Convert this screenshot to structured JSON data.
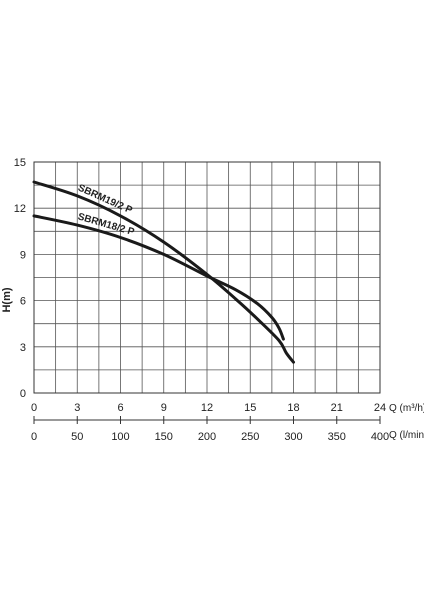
{
  "chart_data": {
    "type": "line",
    "ylabel": "H(m)",
    "xlabel": "Q (m³/h)",
    "x2label": "Q (l/min)",
    "xlim": [
      0,
      24
    ],
    "ylim": [
      0,
      15
    ],
    "x2lim": [
      0,
      400
    ],
    "x_ticks": [
      "0",
      "3",
      "6",
      "9",
      "12",
      "15",
      "18",
      "21",
      "24"
    ],
    "x2_ticks": [
      "0",
      "50",
      "100",
      "150",
      "200",
      "250",
      "300",
      "350",
      "400"
    ],
    "y_ticks": [
      "0",
      "3",
      "6",
      "9",
      "12",
      "15"
    ],
    "grid": true,
    "series": [
      {
        "name": "SBRM19/2 P",
        "x": [
          0,
          3,
          6,
          9,
          12,
          14,
          15.5,
          17,
          17.5,
          18
        ],
        "y": [
          13.7,
          12.8,
          11.5,
          9.8,
          7.7,
          6.1,
          4.8,
          3.4,
          2.6,
          2.0
        ]
      },
      {
        "name": "SBRM18/2 P",
        "x": [
          0,
          3,
          6,
          9,
          12,
          14,
          15.5,
          16.5,
          17,
          17.3
        ],
        "y": [
          11.5,
          10.9,
          10.1,
          9.0,
          7.6,
          6.7,
          5.8,
          4.9,
          4.2,
          3.5
        ]
      }
    ]
  }
}
